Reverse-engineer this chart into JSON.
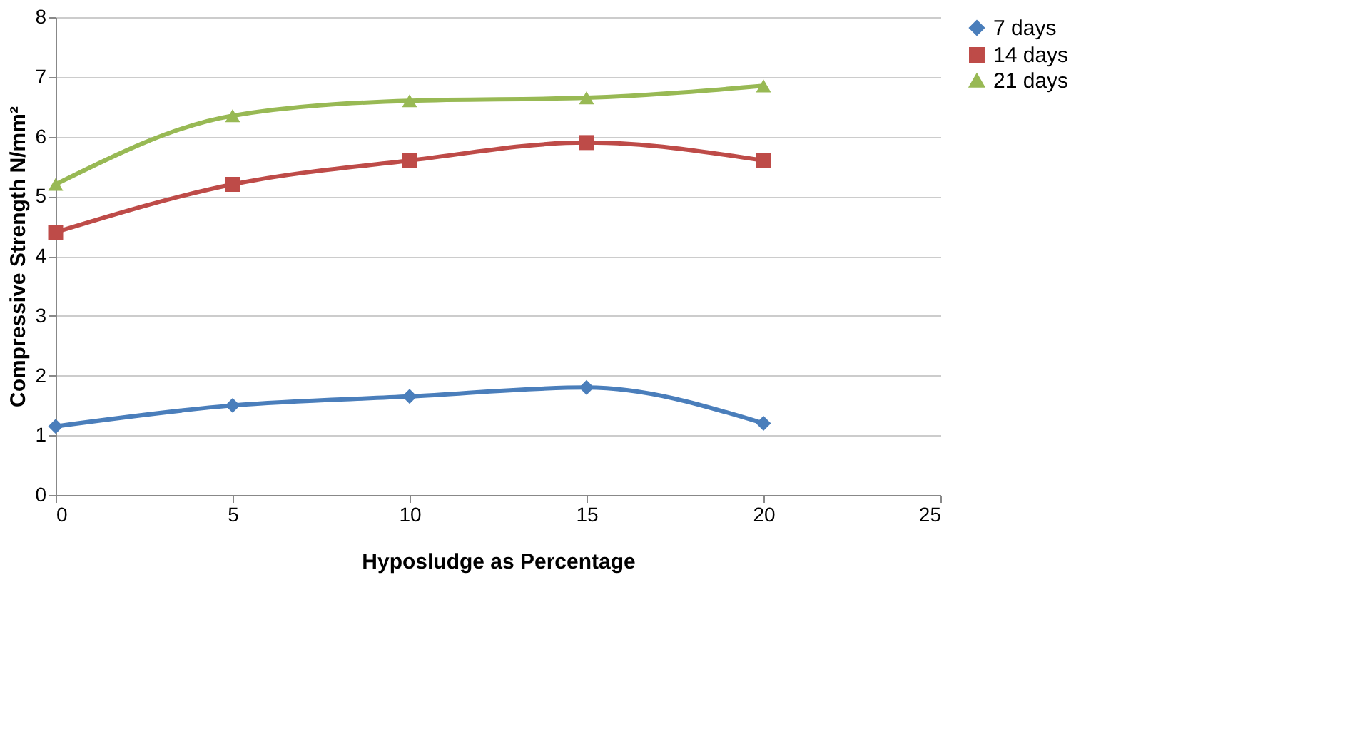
{
  "chart_data": {
    "type": "line",
    "xlabel": "Hyposludge as Percentage",
    "ylabel": "Compressive Strength N/mm²",
    "x": [
      0,
      5,
      10,
      15,
      20
    ],
    "series": [
      {
        "name": "7 days",
        "color": "#4a7ebb",
        "marker": "diamond",
        "values": [
          1.15,
          1.5,
          1.65,
          1.8,
          1.2
        ]
      },
      {
        "name": "14 days",
        "color": "#be4b48",
        "marker": "square",
        "values": [
          4.4,
          5.2,
          5.6,
          5.9,
          5.6
        ]
      },
      {
        "name": "21 days",
        "color": "#98b954",
        "marker": "triangle",
        "values": [
          5.2,
          6.35,
          6.6,
          6.65,
          6.85
        ]
      }
    ],
    "xlim": [
      0,
      25
    ],
    "xticks": [
      0,
      5,
      10,
      15,
      20,
      25
    ],
    "ylim": [
      0,
      8
    ],
    "yticks": [
      0,
      1,
      2,
      3,
      4,
      5,
      6,
      7,
      8
    ],
    "grid": "y",
    "legend": "right",
    "line_style": "solid"
  }
}
